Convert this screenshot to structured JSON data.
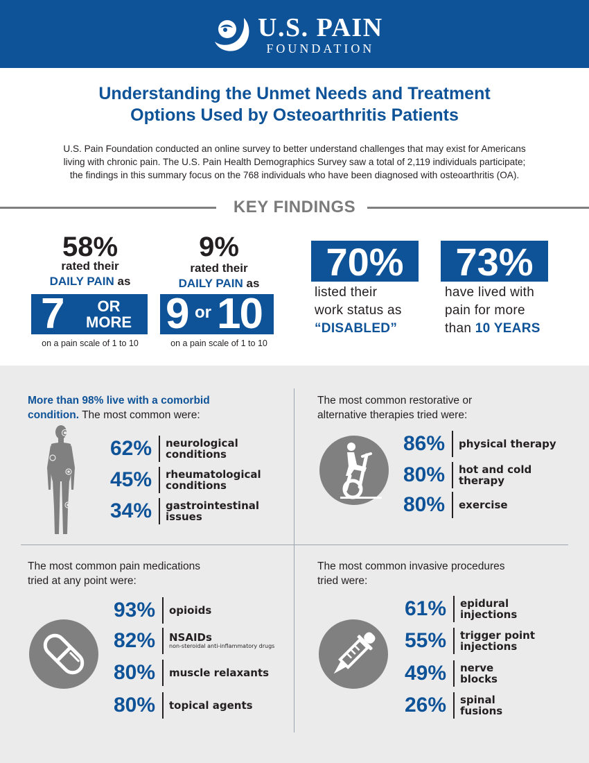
{
  "header": {
    "org_line1": "U.S. PAIN",
    "org_line2": "FOUNDATION"
  },
  "title": {
    "line1": "Understanding the Unmet Needs and Treatment",
    "line2": "Options Used by Osteoarthritis Patients"
  },
  "intro": {
    "line1": "U.S. Pain Foundation conducted an online survey to better understand challenges that may exist for Americans",
    "line2": "living with chronic pain. The U.S. Pain Health Demographics Survey saw a total of 2,119 individuals participate;",
    "line3": "the findings in this summary focus on the 768 individuals who have been diagnosed with osteoarthritis (OA)."
  },
  "key_findings": {
    "heading": "KEY FINDINGS",
    "f1": {
      "pct": "58%",
      "line1": "rated their",
      "line2_hl": "DAILY PAIN",
      "line2_rest": " as",
      "box_num": "7",
      "box_word1": "OR",
      "box_word2": "MORE",
      "scale": "on a pain scale of 1 to 10"
    },
    "f2": {
      "pct": "9%",
      "line1": "rated their",
      "line2_hl": "DAILY PAIN",
      "line2_rest": " as",
      "box_a": "9",
      "box_or": "or",
      "box_b": "10",
      "scale": "on a pain scale of 1 to 10"
    },
    "f3": {
      "pct": "70%",
      "line1": "listed their",
      "line2": "work status as",
      "line3": "“DISABLED”"
    },
    "f4": {
      "pct": "73%",
      "line1": "have lived with",
      "line2": "pain for more",
      "line3_pre": "than ",
      "line3_hl": "10 YEARS"
    }
  },
  "comorbid": {
    "heading_hl": "More than 98% live with a comorbid",
    "heading_hl2": "condition.",
    "heading_rest": " The most common were:",
    "items": [
      {
        "pct": "62%",
        "l1": "neurological",
        "l2": "conditions"
      },
      {
        "pct": "45%",
        "l1": "rheumatological",
        "l2": "conditions"
      },
      {
        "pct": "34%",
        "l1": "gastrointestinal",
        "l2": "issues"
      }
    ]
  },
  "therapies": {
    "heading1": "The most common restorative or",
    "heading2": "alternative therapies tried were:",
    "items": [
      {
        "pct": "86%",
        "l1": "physical therapy",
        "l2": ""
      },
      {
        "pct": "80%",
        "l1": "hot and cold",
        "l2": "therapy"
      },
      {
        "pct": "80%",
        "l1": "exercise",
        "l2": ""
      }
    ]
  },
  "medications": {
    "heading1": "The most common pain medications",
    "heading2": "tried at any point were:",
    "items": [
      {
        "pct": "93%",
        "l1": "opioids",
        "sub": ""
      },
      {
        "pct": "82%",
        "l1": "NSAIDs",
        "sub": "non-steroidal anti-inflammatory drugs"
      },
      {
        "pct": "80%",
        "l1": "muscle relaxants",
        "sub": ""
      },
      {
        "pct": "80%",
        "l1": "topical agents",
        "sub": ""
      }
    ]
  },
  "procedures": {
    "heading1": "The most common invasive procedures",
    "heading2": "tried were:",
    "items": [
      {
        "pct": "61%",
        "l1": "epidural",
        "l2": "injections"
      },
      {
        "pct": "55%",
        "l1": "trigger point",
        "l2": "injections"
      },
      {
        "pct": "49%",
        "l1": "nerve",
        "l2": "blocks"
      },
      {
        "pct": "26%",
        "l1": "spinal",
        "l2": "fusions"
      }
    ]
  },
  "colors": {
    "brand_blue": "#0e5298",
    "gray_bg": "#ebebeb",
    "icon_gray": "#808080"
  },
  "icons": {
    "logo": "foundation-logo-icon",
    "body": "human-body-icon",
    "bike": "stationary-bike-icon",
    "pill": "capsule-icon",
    "dropper": "dropper-icon"
  }
}
